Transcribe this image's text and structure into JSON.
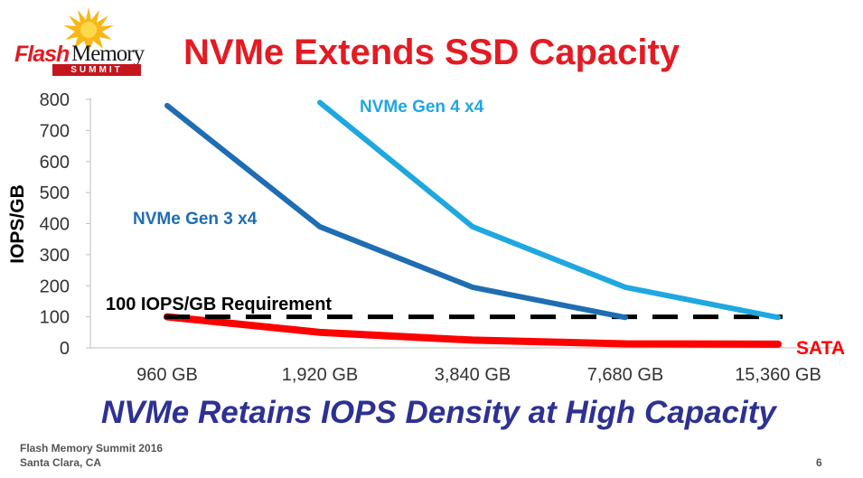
{
  "header": {
    "title": "NVMe Extends SSD Capacity",
    "logo": {
      "word1": "Flash",
      "word2": "Memory",
      "word3": "SUMMIT"
    }
  },
  "subtitle": "NVMe Retains IOPS Density at High Capacity",
  "footer": {
    "line1": "Flash Memory Summit 2016",
    "line2": "Santa Clara, CA",
    "page": "6"
  },
  "colors": {
    "title": "#e31b23",
    "gen3": "#1f6db3",
    "gen4": "#1fa7e0",
    "sata": "#ff0000",
    "subtitle": "#2e3192"
  },
  "chart_data": {
    "type": "line",
    "ylabel": "IOPS/GB",
    "xlabel": "",
    "ylim": [
      0,
      800
    ],
    "yticks": [
      0,
      100,
      200,
      300,
      400,
      500,
      600,
      700,
      800
    ],
    "categories": [
      "960 GB",
      "1,920 GB",
      "3,840 GB",
      "7,680 GB",
      "15,360 GB"
    ],
    "series": [
      {
        "name": "NVMe Gen 3 x4",
        "color": "#1f6db3",
        "values": [
          780,
          390,
          195,
          98,
          null
        ]
      },
      {
        "name": "NVMe Gen 4 x4",
        "color": "#1fa7e0",
        "values": [
          null,
          790,
          390,
          195,
          98
        ]
      },
      {
        "name": "SATA",
        "color": "#ff0000",
        "values": [
          100,
          50,
          25,
          13,
          12
        ]
      }
    ],
    "reference_line": {
      "name": "100 IOPS/GB Requirement",
      "value": 100,
      "from": 0,
      "to": 4
    }
  }
}
